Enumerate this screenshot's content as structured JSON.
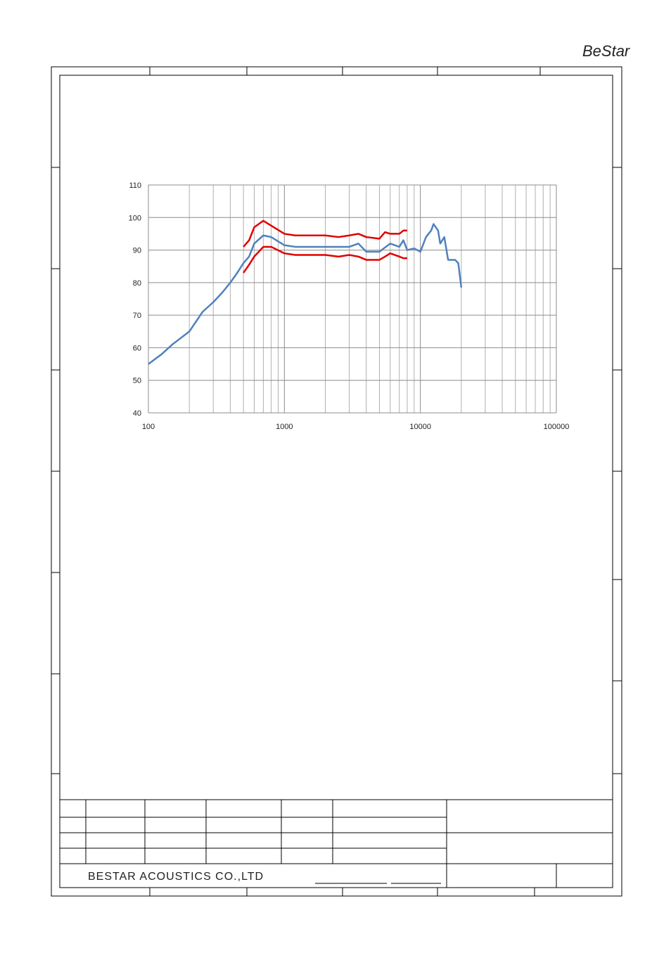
{
  "logo": "BeStar",
  "company": "BESTAR ACOUSTICS CO.,LTD",
  "chart_data": {
    "type": "line",
    "xscale": "log",
    "grid": true,
    "xlim": [
      100,
      100000
    ],
    "xticks": [
      100,
      1000,
      10000,
      100000
    ],
    "ylim": [
      40,
      110
    ],
    "yticks": [
      40,
      50,
      60,
      70,
      80,
      90,
      100,
      110
    ],
    "series": [
      {
        "color": "#e00000",
        "x": [
          500,
          550,
          600,
          700,
          800,
          1000,
          1200,
          1500,
          2000,
          2500,
          3000,
          3500,
          4000,
          5000,
          5500,
          6000,
          7000,
          7500,
          8000
        ],
        "values": [
          91,
          93,
          97,
          99,
          97.5,
          95,
          94.5,
          94.5,
          94.5,
          94,
          94.5,
          95,
          94,
          93.5,
          95.5,
          95,
          95,
          96,
          96
        ]
      },
      {
        "color": "#e00000",
        "x": [
          500,
          550,
          600,
          700,
          800,
          1000,
          1200,
          1500,
          2000,
          2500,
          3000,
          3500,
          4000,
          5000,
          5500,
          6000,
          7000,
          7500,
          8000
        ],
        "values": [
          83,
          85.5,
          88,
          91,
          91,
          89,
          88.5,
          88.5,
          88.5,
          88,
          88.5,
          88,
          87,
          87,
          88,
          89,
          88,
          87.5,
          87.5
        ]
      },
      {
        "color": "#4f81bd",
        "x": [
          100,
          125,
          150,
          200,
          250,
          300,
          350,
          400,
          450,
          500,
          550,
          600,
          700,
          800,
          1000,
          1200,
          1500,
          2000,
          2500,
          3000,
          3500,
          4000,
          5000,
          6000,
          7000,
          7500,
          8000,
          9000,
          10000,
          11000,
          12000,
          12500,
          13500,
          14000,
          15000,
          16000,
          18000,
          19000,
          20000
        ],
        "values": [
          55,
          58,
          61,
          65,
          71,
          74,
          77,
          80,
          83,
          86,
          88,
          92,
          94.5,
          94,
          91.5,
          91,
          91,
          91,
          91,
          91,
          92,
          89.5,
          89.5,
          92,
          91,
          93,
          90,
          90.5,
          89.5,
          94,
          96,
          98,
          96,
          92,
          94,
          87,
          87,
          86,
          78.5
        ]
      }
    ]
  }
}
